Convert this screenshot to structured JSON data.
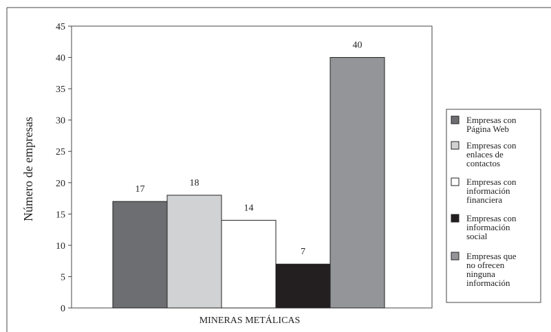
{
  "chart_data": {
    "type": "bar",
    "xlabel": "MINERAS METÁLICAS",
    "ylabel": "Número de empresas",
    "ylim": [
      0,
      45
    ],
    "yticks": [
      0,
      5,
      10,
      15,
      20,
      25,
      30,
      35,
      40,
      45
    ],
    "grid": false,
    "legend_position": "right",
    "categories": [
      "MINERAS METÁLICAS"
    ],
    "series": [
      {
        "name": "Empresas con Página Web",
        "legend_lines": [
          "Empresas con",
          "Página Web"
        ],
        "values": [
          17
        ],
        "color": "#6d6e71"
      },
      {
        "name": "Empresas con enlaces de contactos",
        "legend_lines": [
          "Empresas con",
          "enlaces de",
          "contactos"
        ],
        "values": [
          18
        ],
        "color": "#d1d2d4"
      },
      {
        "name": "Empresas con información financiera",
        "legend_lines": [
          "Empresas con",
          "información",
          "financiera"
        ],
        "values": [
          14
        ],
        "color": "#ffffff"
      },
      {
        "name": "Empresas con información social",
        "legend_lines": [
          "Empresas con",
          "información",
          "social"
        ],
        "values": [
          7
        ],
        "color": "#231f20"
      },
      {
        "name": "Empresas que no ofrecen ninguna información",
        "legend_lines": [
          "Empresas que",
          "no ofrecen",
          "ninguna",
          "información"
        ],
        "values": [
          40
        ],
        "color": "#939598"
      }
    ]
  }
}
